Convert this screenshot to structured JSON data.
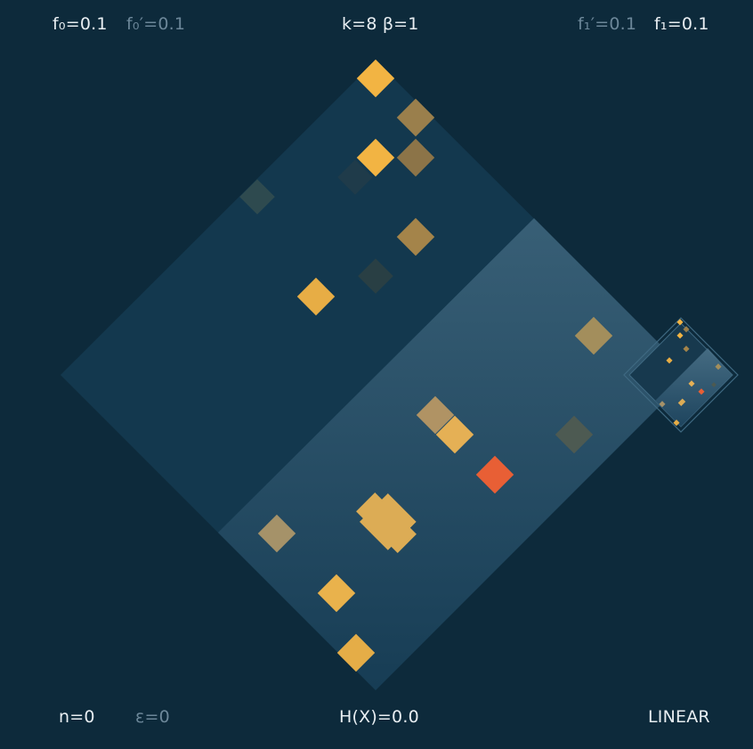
{
  "hud": {
    "f0": "f₀=0.1",
    "f0_prime": "f₀′=0.1",
    "k_beta": "k=8  β=1",
    "f1_prime": "f₁′=0.1",
    "f1": "f₁=0.1",
    "n": "n=0",
    "epsilon": "ε=0",
    "entropy": "H(X)=0.0",
    "mode": "LINEAR"
  },
  "colors": {
    "background": "#0d2a3b",
    "board_upper": "#13384e",
    "board_lower": "#2a5068",
    "tile_bright": "#f2b443",
    "tile_mid": "#9a7f4c",
    "tile_faint": "#2c3f43",
    "tile_hot": "#e85f35",
    "hud_text": "#e8eef2",
    "hud_dim": "#6c8799"
  }
}
